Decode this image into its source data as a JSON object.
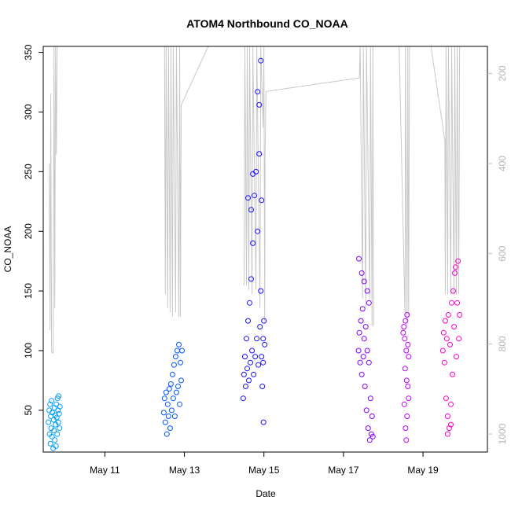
{
  "chart_data": {
    "type": "scatter",
    "title": "ATOM4 Northbound CO_NOAA",
    "xlabel": "Date",
    "ylabel": "CO_NOAA",
    "x_ticks": [
      {
        "day": 11,
        "label": "May 11"
      },
      {
        "day": 13,
        "label": "May 13"
      },
      {
        "day": 15,
        "label": "May 15"
      },
      {
        "day": 17,
        "label": "May 17"
      },
      {
        "day": 19,
        "label": "May 19"
      }
    ],
    "xlim": [
      9.45,
      20.62
    ],
    "ylim": [
      15,
      355
    ],
    "y_ticks": [
      50,
      100,
      150,
      200,
      250,
      300,
      350
    ],
    "right_axis": {
      "ticks": [
        200,
        400,
        600,
        800,
        1000
      ],
      "lim": [
        1040,
        140
      ],
      "reversed": true,
      "color": "#bebebe"
    },
    "grid": false,
    "legend": "none",
    "series": [
      {
        "flight": 1,
        "color": "#009fff",
        "points": [
          [
            9.58,
            40
          ],
          [
            9.6,
            50
          ],
          [
            9.61,
            30
          ],
          [
            9.62,
            55
          ],
          [
            9.63,
            22
          ],
          [
            9.64,
            45
          ],
          [
            9.65,
            35
          ],
          [
            9.66,
            58
          ],
          [
            9.67,
            28
          ],
          [
            9.68,
            48
          ],
          [
            9.7,
            18
          ],
          [
            9.71,
            42
          ],
          [
            9.72,
            33
          ],
          [
            9.73,
            52
          ],
          [
            9.74,
            25
          ],
          [
            9.75,
            46
          ],
          [
            9.76,
            38
          ],
          [
            9.77,
            20
          ],
          [
            9.78,
            55
          ],
          [
            9.79,
            44
          ],
          [
            9.8,
            30
          ],
          [
            9.81,
            60
          ],
          [
            9.82,
            50
          ],
          [
            9.83,
            40
          ],
          [
            9.84,
            62
          ],
          [
            9.85,
            47
          ],
          [
            9.86,
            35
          ],
          [
            9.87,
            53
          ]
        ],
        "pressure": [
          [
            9.6,
            400
          ],
          [
            9.62,
            770
          ],
          [
            9.64,
            245
          ],
          [
            9.66,
            810
          ],
          [
            9.67,
            820
          ],
          [
            9.7,
            820
          ],
          [
            9.72,
            140
          ],
          [
            9.74,
            720
          ],
          [
            9.76,
            140
          ],
          [
            9.78,
            380
          ],
          [
            9.8,
            140
          ]
        ]
      },
      {
        "flight": 2,
        "color": "#0055ff",
        "points": [
          [
            12.48,
            48
          ],
          [
            12.5,
            60
          ],
          [
            12.52,
            40
          ],
          [
            12.54,
            65
          ],
          [
            12.56,
            30
          ],
          [
            12.58,
            55
          ],
          [
            12.6,
            45
          ],
          [
            12.62,
            68
          ],
          [
            12.64,
            35
          ],
          [
            12.66,
            72
          ],
          [
            12.68,
            50
          ],
          [
            12.7,
            80
          ],
          [
            12.72,
            60
          ],
          [
            12.74,
            88
          ],
          [
            12.76,
            45
          ],
          [
            12.78,
            95
          ],
          [
            12.8,
            65
          ],
          [
            12.82,
            100
          ],
          [
            12.84,
            70
          ],
          [
            12.86,
            105
          ],
          [
            12.88,
            55
          ],
          [
            12.9,
            90
          ],
          [
            12.92,
            75
          ],
          [
            12.94,
            100
          ]
        ],
        "pressure": [
          [
            12.5,
            140
          ],
          [
            12.52,
            690
          ],
          [
            12.54,
            140
          ],
          [
            12.58,
            720
          ],
          [
            12.6,
            140
          ],
          [
            12.64,
            730
          ],
          [
            12.66,
            140
          ],
          [
            12.7,
            740
          ],
          [
            12.72,
            140
          ],
          [
            12.78,
            730
          ],
          [
            12.8,
            140
          ],
          [
            12.86,
            740
          ],
          [
            12.88,
            140
          ],
          [
            12.9,
            740
          ],
          [
            12.92,
            270
          ],
          [
            13.6,
            140
          ]
        ]
      },
      {
        "flight": 3,
        "color": "#1a11ff",
        "points": [
          [
            14.48,
            60
          ],
          [
            14.5,
            80
          ],
          [
            14.52,
            95
          ],
          [
            14.54,
            70
          ],
          [
            14.56,
            110
          ],
          [
            14.58,
            85
          ],
          [
            14.6,
            125
          ],
          [
            14.62,
            75
          ],
          [
            14.64,
            140
          ],
          [
            14.66,
            90
          ],
          [
            14.68,
            160
          ],
          [
            14.7,
            100
          ],
          [
            14.72,
            190
          ],
          [
            14.74,
            80
          ],
          [
            14.76,
            230
          ],
          [
            14.78,
            95
          ],
          [
            14.8,
            250
          ],
          [
            14.82,
            110
          ],
          [
            14.84,
            200
          ],
          [
            14.86,
            88
          ],
          [
            14.88,
            265
          ],
          [
            14.9,
            120
          ],
          [
            14.92,
            150
          ],
          [
            14.94,
            95
          ],
          [
            14.96,
            70
          ],
          [
            14.98,
            110
          ],
          [
            14.6,
            228
          ],
          [
            14.68,
            218
          ],
          [
            14.72,
            248
          ],
          [
            14.84,
            317
          ],
          [
            14.88,
            306
          ],
          [
            14.92,
            343
          ],
          [
            14.94,
            226
          ],
          [
            14.98,
            90
          ],
          [
            15.0,
            125
          ],
          [
            15.02,
            105
          ],
          [
            14.99,
            40
          ]
        ],
        "pressure": [
          [
            14.5,
            670
          ],
          [
            14.52,
            140
          ],
          [
            14.56,
            670
          ],
          [
            14.58,
            140
          ],
          [
            14.62,
            680
          ],
          [
            14.64,
            140
          ],
          [
            14.7,
            690
          ],
          [
            14.72,
            140
          ],
          [
            14.8,
            680
          ],
          [
            14.82,
            140
          ],
          [
            14.9,
            720
          ],
          [
            14.92,
            140
          ],
          [
            14.98,
            320
          ],
          [
            15.0,
            140
          ],
          [
            15.02,
            750
          ],
          [
            15.03,
            380
          ],
          [
            15.05,
            240
          ],
          [
            17.4,
            210
          ]
        ]
      },
      {
        "flight": 4,
        "color": "#8000ff",
        "points": [
          [
            17.38,
            100
          ],
          [
            17.4,
            115
          ],
          [
            17.42,
            90
          ],
          [
            17.44,
            125
          ],
          [
            17.46,
            80
          ],
          [
            17.48,
            135
          ],
          [
            17.5,
            95
          ],
          [
            17.52,
            110
          ],
          [
            17.54,
            70
          ],
          [
            17.56,
            120
          ],
          [
            17.58,
            50
          ],
          [
            17.6,
            100
          ],
          [
            17.62,
            35
          ],
          [
            17.64,
            90
          ],
          [
            17.66,
            25
          ],
          [
            17.68,
            60
          ],
          [
            17.7,
            30
          ],
          [
            17.72,
            45
          ],
          [
            17.74,
            28
          ],
          [
            17.39,
            177
          ],
          [
            17.46,
            165
          ],
          [
            17.6,
            150
          ],
          [
            17.64,
            140
          ],
          [
            17.52,
            158
          ]
        ],
        "pressure": [
          [
            17.4,
            210
          ],
          [
            17.42,
            140
          ],
          [
            17.48,
            700
          ],
          [
            17.5,
            140
          ],
          [
            17.56,
            720
          ],
          [
            17.58,
            140
          ],
          [
            17.66,
            700
          ],
          [
            17.68,
            140
          ],
          [
            17.72,
            760
          ],
          [
            17.74,
            140
          ],
          [
            17.76,
            760
          ]
        ]
      },
      {
        "flight": 5,
        "color": "#c000ff",
        "points": [
          [
            18.5,
            115
          ],
          [
            18.52,
            120
          ],
          [
            18.54,
            110
          ],
          [
            18.56,
            125
          ],
          [
            18.58,
            100
          ],
          [
            18.6,
            130
          ],
          [
            18.62,
            105
          ],
          [
            18.64,
            95
          ],
          [
            18.53,
            55
          ],
          [
            18.56,
            35
          ],
          [
            18.58,
            25
          ],
          [
            18.6,
            45
          ],
          [
            18.62,
            70
          ],
          [
            18.64,
            60
          ],
          [
            18.55,
            85
          ],
          [
            18.59,
            75
          ]
        ],
        "pressure": [
          [
            18.4,
            140
          ],
          [
            18.55,
            740
          ],
          [
            18.56,
            140
          ],
          [
            18.6,
            760
          ],
          [
            18.62,
            140
          ],
          [
            18.64,
            740
          ],
          [
            18.66,
            140
          ]
        ]
      },
      {
        "flight": 6,
        "color": "#ff00cc",
        "points": [
          [
            19.5,
            100
          ],
          [
            19.52,
            115
          ],
          [
            19.54,
            90
          ],
          [
            19.56,
            125
          ],
          [
            19.58,
            60
          ],
          [
            19.6,
            110
          ],
          [
            19.62,
            45
          ],
          [
            19.64,
            130
          ],
          [
            19.66,
            35
          ],
          [
            19.68,
            105
          ],
          [
            19.7,
            55
          ],
          [
            19.72,
            140
          ],
          [
            19.74,
            80
          ],
          [
            19.76,
            150
          ],
          [
            19.78,
            120
          ],
          [
            19.8,
            165
          ],
          [
            19.82,
            170
          ],
          [
            19.84,
            95
          ],
          [
            19.86,
            140
          ],
          [
            19.88,
            175
          ],
          [
            19.9,
            110
          ],
          [
            19.92,
            130
          ],
          [
            19.62,
            30
          ],
          [
            19.7,
            38
          ]
        ],
        "pressure": [
          [
            19.2,
            140
          ],
          [
            19.55,
            350
          ],
          [
            19.56,
            690
          ],
          [
            19.58,
            140
          ],
          [
            19.62,
            690
          ],
          [
            19.64,
            140
          ],
          [
            19.7,
            690
          ],
          [
            19.72,
            140
          ],
          [
            19.78,
            690
          ],
          [
            19.8,
            140
          ],
          [
            19.84,
            690
          ],
          [
            19.86,
            140
          ],
          [
            19.9,
            690
          ],
          [
            19.92,
            140
          ]
        ]
      }
    ]
  }
}
